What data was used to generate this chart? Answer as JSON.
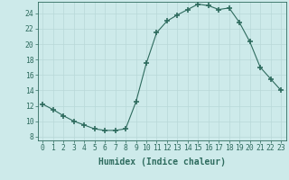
{
  "x": [
    0,
    1,
    2,
    3,
    4,
    5,
    6,
    7,
    8,
    9,
    10,
    11,
    12,
    13,
    14,
    15,
    16,
    17,
    18,
    19,
    20,
    21,
    22,
    23
  ],
  "y": [
    12.2,
    11.5,
    10.7,
    10.0,
    9.5,
    9.0,
    8.8,
    8.8,
    9.0,
    12.5,
    17.5,
    21.5,
    23.0,
    23.8,
    24.5,
    25.2,
    25.0,
    24.5,
    24.7,
    22.8,
    20.3,
    17.0,
    15.5,
    14.0
  ],
  "line_color": "#2e6b5e",
  "marker": "+",
  "marker_size": 4,
  "bg_color": "#cdeaea",
  "grid_color": "#b8d8d8",
  "xlabel": "Humidex (Indice chaleur)",
  "xlim": [
    -0.5,
    23.5
  ],
  "ylim": [
    7.5,
    25.5
  ],
  "yticks": [
    8,
    10,
    12,
    14,
    16,
    18,
    20,
    22,
    24
  ],
  "xticks": [
    0,
    1,
    2,
    3,
    4,
    5,
    6,
    7,
    8,
    9,
    10,
    11,
    12,
    13,
    14,
    15,
    16,
    17,
    18,
    19,
    20,
    21,
    22,
    23
  ],
  "tick_fontsize": 5.8,
  "xlabel_fontsize": 7.0,
  "line_width": 0.8,
  "marker_lw": 1.2
}
